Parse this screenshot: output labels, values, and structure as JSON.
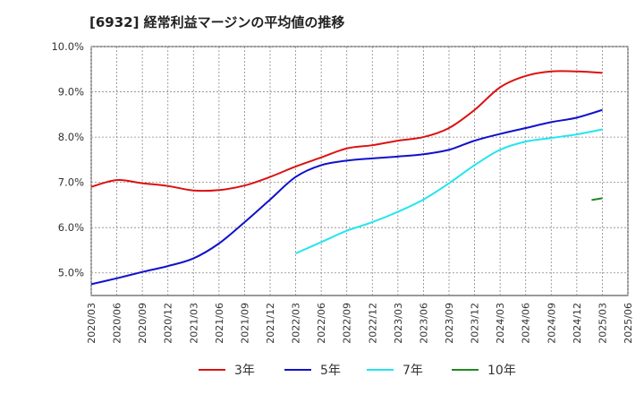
{
  "title": "[6932]  経常利益マージンの平均値の推移",
  "chart_data": {
    "type": "line",
    "title": "[6932]  経常利益マージンの平均値の推移",
    "xlabel": "",
    "ylabel": "",
    "x": [
      "2020/03",
      "2020/06",
      "2020/09",
      "2020/12",
      "2021/03",
      "2021/06",
      "2021/09",
      "2021/12",
      "2022/03",
      "2022/06",
      "2022/09",
      "2022/12",
      "2023/03",
      "2023/06",
      "2023/09",
      "2023/12",
      "2024/03",
      "2024/06",
      "2024/09",
      "2024/12",
      "2025/03",
      "2025/06"
    ],
    "ylim": [
      4.5,
      10.0
    ],
    "yticks": [
      "5.0%",
      "6.0%",
      "7.0%",
      "8.0%",
      "9.0%",
      "10.0%"
    ],
    "ytick_values": [
      5.0,
      6.0,
      7.0,
      8.0,
      9.0,
      10.0
    ],
    "grid": true,
    "legend_position": "bottom",
    "series": [
      {
        "name": "3年",
        "color": "#dd1111",
        "values": [
          6.9,
          7.05,
          6.98,
          6.92,
          6.82,
          6.83,
          6.93,
          7.12,
          7.35,
          7.55,
          7.75,
          7.82,
          7.92,
          8.0,
          8.2,
          8.6,
          9.1,
          9.35,
          9.45,
          9.45,
          9.42,
          null
        ]
      },
      {
        "name": "5年",
        "color": "#1111cc",
        "values": [
          4.75,
          4.88,
          5.02,
          5.15,
          5.32,
          5.65,
          6.12,
          6.62,
          7.12,
          7.38,
          7.48,
          7.53,
          7.57,
          7.62,
          7.72,
          7.92,
          8.07,
          8.2,
          8.33,
          8.43,
          8.6,
          null
        ]
      },
      {
        "name": "7年",
        "color": "#22e5ee",
        "values": [
          null,
          null,
          null,
          null,
          null,
          null,
          null,
          null,
          5.43,
          5.68,
          5.93,
          6.12,
          6.35,
          6.62,
          6.98,
          7.38,
          7.72,
          7.9,
          7.98,
          8.06,
          8.17,
          null
        ]
      },
      {
        "name": "10年",
        "color": "#228822",
        "values": [
          null,
          null,
          null,
          null,
          null,
          null,
          null,
          null,
          null,
          null,
          null,
          null,
          null,
          null,
          null,
          null,
          null,
          null,
          null,
          null,
          6.65,
          null
        ]
      }
    ]
  }
}
